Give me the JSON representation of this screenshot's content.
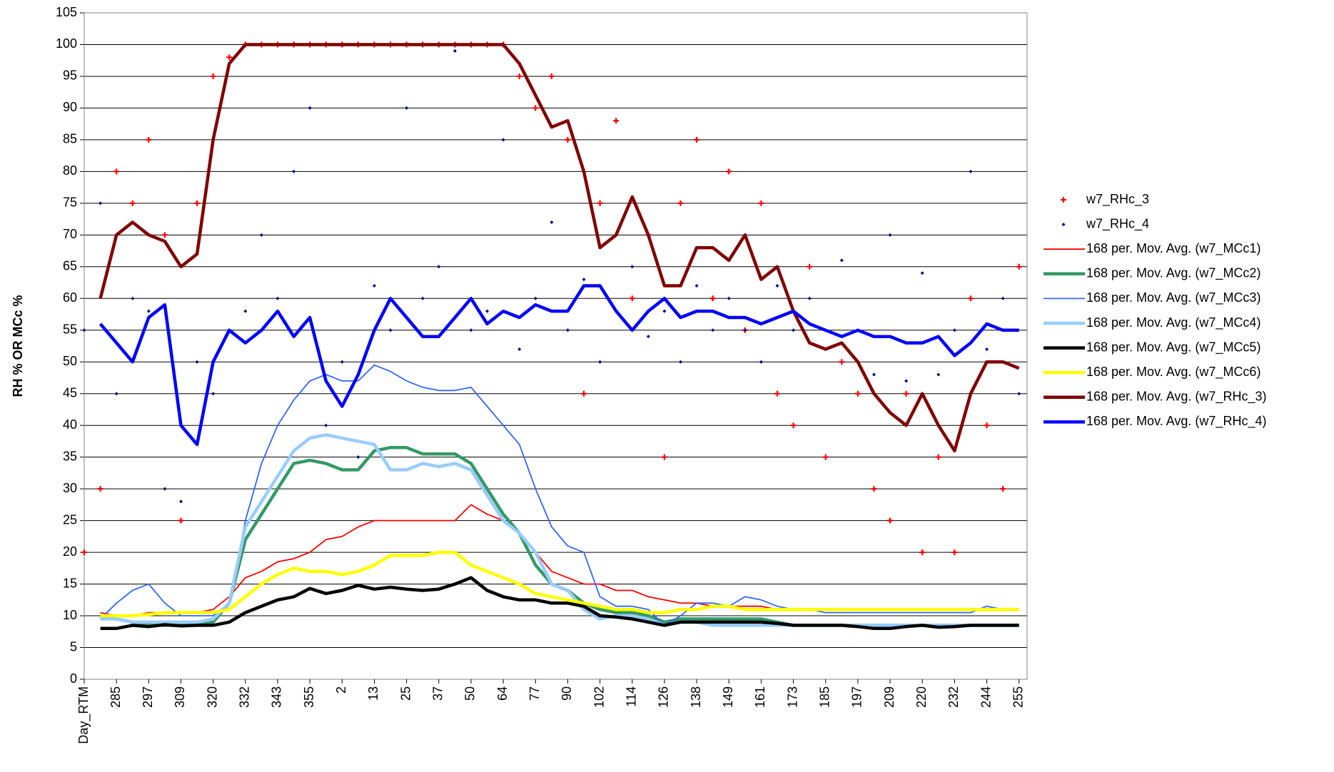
{
  "chart_data": {
    "type": "line",
    "y_label": "RH % OR MCc %",
    "categories": [
      "Day_RTM",
      null,
      "285",
      null,
      "297",
      null,
      "309",
      null,
      "320",
      null,
      "332",
      null,
      "343",
      null,
      "355",
      null,
      "2",
      null,
      "13",
      null,
      "25",
      null,
      "37",
      null,
      "50",
      null,
      "64",
      null,
      "77",
      null,
      "90",
      null,
      "102",
      null,
      "114",
      null,
      "126",
      null,
      "138",
      null,
      "149",
      null,
      "161",
      null,
      "173",
      null,
      "185",
      null,
      "197",
      null,
      "209",
      null,
      "220",
      null,
      "232",
      null,
      "244",
      null,
      "255"
    ],
    "ylim": [
      0,
      105
    ],
    "yticks": [
      0,
      5,
      10,
      15,
      20,
      25,
      30,
      35,
      40,
      45,
      50,
      55,
      60,
      65,
      70,
      75,
      80,
      85,
      90,
      95,
      100,
      105
    ],
    "grid": true,
    "legend": "right",
    "series": [
      {
        "name": "w7_RHc_3",
        "kind": "scatter",
        "color": "#ff0000",
        "values": [
          20,
          30,
          80,
          75,
          85,
          70,
          25,
          75,
          95,
          98,
          100,
          100,
          100,
          100,
          100,
          100,
          100,
          100,
          100,
          100,
          100,
          100,
          100,
          100,
          100,
          100,
          100,
          95,
          90,
          95,
          85,
          45,
          75,
          88,
          60,
          70,
          35,
          75,
          85,
          60,
          80,
          55,
          75,
          45,
          40,
          65,
          35,
          50,
          45,
          30,
          25,
          45,
          20,
          35,
          20,
          60,
          40,
          30,
          65
        ]
      },
      {
        "name": "w7_RHc_4",
        "kind": "scatter",
        "color": "#000080",
        "values": [
          55,
          75,
          45,
          60,
          58,
          30,
          28,
          50,
          45,
          55,
          58,
          70,
          60,
          80,
          90,
          40,
          50,
          35,
          62,
          55,
          90,
          60,
          65,
          99,
          55,
          58,
          85,
          52,
          60,
          72,
          55,
          63,
          50,
          58,
          65,
          54,
          58,
          50,
          62,
          55,
          60,
          55,
          50,
          62,
          55,
          60,
          52,
          66,
          50,
          48,
          70,
          47,
          64,
          48,
          55,
          80,
          52,
          60,
          45
        ]
      },
      {
        "name": "168 per. Mov. Avg. (w7_MCc1)",
        "color": "#ff0000",
        "values": [
          null,
          10.5,
          10,
          10,
          10.5,
          10.5,
          10.5,
          10.5,
          11,
          13,
          16,
          17,
          18.5,
          19,
          20,
          22,
          22.5,
          24,
          25,
          25,
          25,
          25,
          25,
          25,
          27.5,
          26,
          25,
          23,
          20,
          17,
          16,
          15,
          15,
          14,
          14,
          13,
          12.5,
          12,
          12,
          11.5,
          11.5,
          11.5,
          11.5,
          11,
          11,
          11,
          11,
          11,
          11,
          11,
          11,
          11,
          11,
          11,
          11,
          11,
          11,
          11,
          11
        ]
      },
      {
        "name": "168 per. Mov. Avg. (w7_MCc2)",
        "color": "#339966",
        "values": [
          null,
          10,
          9.5,
          9,
          8.5,
          8.5,
          8.5,
          8.5,
          9,
          12,
          22,
          26,
          30,
          34,
          34.5,
          34,
          33,
          33,
          36,
          36.5,
          36.5,
          35.5,
          35.5,
          35.5,
          34,
          30,
          26,
          23,
          18,
          15,
          14,
          12,
          11,
          10.5,
          10.5,
          10,
          9,
          9.5,
          9.5,
          9.5,
          9.5,
          9.5,
          9.5,
          9,
          8.5,
          8.5,
          8.5,
          8.5,
          8.5,
          8.5,
          8.5,
          8.5,
          8.5,
          8.5,
          8.5,
          8.5,
          8.5,
          8.5,
          8.5
        ]
      },
      {
        "name": "168 per. Mov. Avg. (w7_MCc3)",
        "color": "#3366ff",
        "values": [
          null,
          9.5,
          12,
          14,
          15,
          12,
          10,
          10,
          10,
          12,
          25,
          34,
          40,
          44,
          47,
          48,
          47,
          47,
          49.5,
          48.5,
          47,
          46,
          45.5,
          45.5,
          46,
          43,
          40,
          37,
          30,
          24,
          21,
          20,
          13,
          11.5,
          11.5,
          11,
          8.5,
          10,
          12,
          12,
          11.5,
          13,
          12.5,
          11.5,
          11,
          11,
          10.5,
          10.5,
          10.5,
          10.5,
          10.5,
          10.5,
          10.5,
          10.5,
          10.5,
          10.5,
          11.5,
          11,
          11
        ]
      },
      {
        "name": "168 per. Mov. Avg. (w7_MCc4)",
        "color": "#99ccff",
        "values": [
          null,
          9.5,
          9.5,
          9,
          9,
          9,
          9,
          9,
          9.5,
          12,
          24,
          28,
          32,
          36,
          38,
          38.5,
          38,
          37.5,
          37,
          33,
          33,
          34,
          33.5,
          34,
          33,
          29,
          25,
          23,
          20,
          15,
          14,
          11,
          9.5,
          10,
          10,
          9.5,
          8.5,
          9,
          9,
          8.5,
          8.5,
          8.5,
          8.5,
          8.5,
          8.5,
          8.5,
          8.5,
          8.5,
          8.5,
          8.5,
          8.5,
          8.5,
          8.5,
          8.5,
          8.5,
          8.5,
          8.5,
          8.5,
          8.5
        ]
      },
      {
        "name": "168 per. Mov. Avg. (w7_MCc5)",
        "color": "#000000",
        "values": [
          null,
          8,
          8,
          8.5,
          8.3,
          8.6,
          8.4,
          8.5,
          8.5,
          9,
          10.5,
          11.5,
          12.5,
          13,
          14.3,
          13.5,
          14,
          14.8,
          14.2,
          14.5,
          14.2,
          14,
          14.2,
          15,
          16,
          14,
          13,
          12.5,
          12.5,
          12,
          12,
          11.5,
          10,
          9.8,
          9.5,
          9,
          8.5,
          9,
          9,
          9,
          9,
          9,
          9,
          8.8,
          8.5,
          8.5,
          8.5,
          8.5,
          8.3,
          8,
          8,
          8.3,
          8.5,
          8.2,
          8.3,
          8.5,
          8.5,
          8.5,
          8.5
        ]
      },
      {
        "name": "168 per. Mov. Avg. (w7_MCc6)",
        "color": "#ffff00",
        "values": [
          null,
          10,
          10,
          10,
          10.2,
          10.5,
          10.5,
          10.5,
          10.5,
          11,
          13,
          15,
          16.5,
          17.5,
          17,
          17,
          16.5,
          17,
          18,
          19.5,
          19.5,
          19.5,
          20,
          20,
          18,
          17,
          16,
          15,
          13.5,
          13,
          12.5,
          12,
          11.5,
          11,
          11,
          10.5,
          10.5,
          11,
          11,
          11.5,
          11.5,
          11,
          11,
          11,
          11,
          11,
          11,
          11,
          11,
          11,
          11,
          11,
          11,
          11,
          11,
          11,
          11,
          11,
          11
        ]
      },
      {
        "name": "168 per. Mov. Avg. (w7_RHc_3)",
        "color": "#800000",
        "values": [
          null,
          60,
          70,
          72,
          70,
          69,
          65,
          67,
          85,
          97,
          100,
          100,
          100,
          100,
          100,
          100,
          100,
          100,
          100,
          100,
          100,
          100,
          100,
          100,
          100,
          100,
          100,
          97,
          92,
          87,
          88,
          80,
          68,
          70,
          76,
          70,
          62,
          62,
          68,
          68,
          66,
          70,
          63,
          65,
          58,
          53,
          52,
          53,
          50,
          45,
          42,
          40,
          45,
          40,
          36,
          45,
          50,
          50,
          49
        ]
      },
      {
        "name": "168 per. Mov. Avg. (w7_RHc_4)",
        "color": "#0000ff",
        "values": [
          null,
          56,
          53,
          50,
          57,
          59,
          40,
          37,
          50,
          55,
          53,
          55,
          58,
          54,
          57,
          47,
          43,
          48,
          55,
          60,
          57,
          54,
          54,
          57,
          60,
          56,
          58,
          57,
          59,
          58,
          58,
          62,
          62,
          58,
          55,
          58,
          60,
          57,
          58,
          58,
          57,
          57,
          56,
          57,
          58,
          56,
          55,
          54,
          55,
          54,
          54,
          53,
          53,
          54,
          51,
          53,
          56,
          55,
          55
        ]
      }
    ]
  }
}
